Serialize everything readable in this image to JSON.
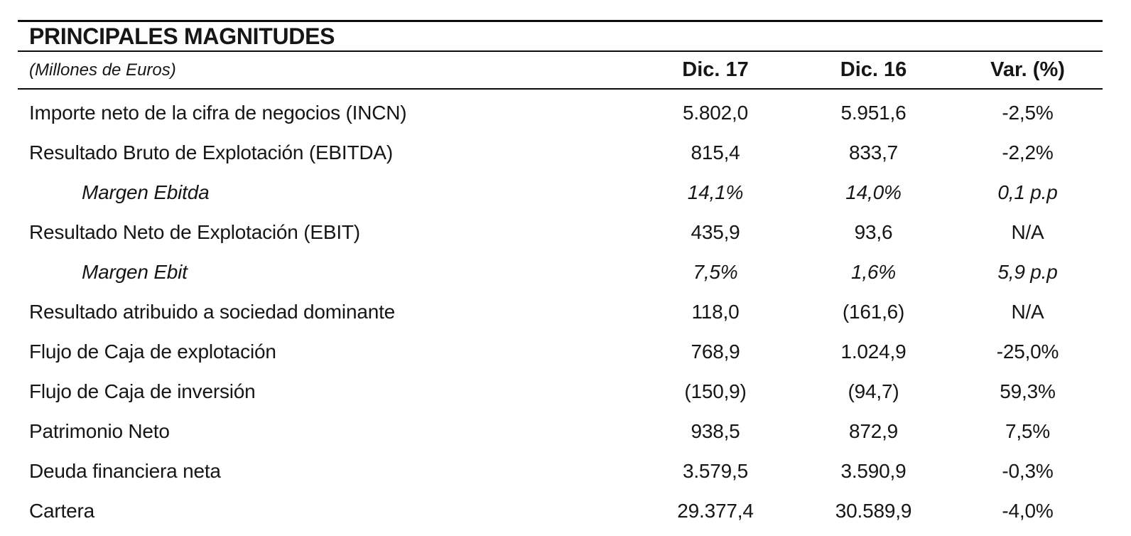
{
  "colors": {
    "text": "#161616",
    "rule": "#0d0d0d",
    "background": "#ffffff"
  },
  "table": {
    "title": "PRINCIPALES MAGNITUDES",
    "unit_note": "(Millones de Euros)",
    "columns": [
      "Dic. 17",
      "Dic. 16",
      "Var. (%)"
    ],
    "rows": [
      {
        "label": "Importe neto de la cifra de negocios (INCN)",
        "dic17": "5.802,0",
        "dic16": "5.951,6",
        "var": "-2,5%",
        "style": "normal"
      },
      {
        "label": "Resultado Bruto de Explotación (EBITDA)",
        "dic17": "815,4",
        "dic16": "833,7",
        "var": "-2,2%",
        "style": "normal"
      },
      {
        "label": "Margen Ebitda",
        "dic17": "14,1%",
        "dic16": "14,0%",
        "var": "0,1 p.p",
        "style": "italic-indent"
      },
      {
        "label": "Resultado Neto de Explotación (EBIT)",
        "dic17": "435,9",
        "dic16": "93,6",
        "var": "N/A",
        "style": "normal"
      },
      {
        "label": "Margen Ebit",
        "dic17": "7,5%",
        "dic16": "1,6%",
        "var": "5,9 p.p",
        "style": "italic-indent"
      },
      {
        "label": "Resultado atribuido a sociedad dominante",
        "dic17": "118,0",
        "dic16": "(161,6)",
        "var": "N/A",
        "style": "normal"
      },
      {
        "label": "Flujo de Caja de explotación",
        "dic17": "768,9",
        "dic16": "1.024,9",
        "var": "-25,0%",
        "style": "normal"
      },
      {
        "label": "Flujo de Caja de inversión",
        "dic17": "(150,9)",
        "dic16": "(94,7)",
        "var": "59,3%",
        "style": "normal"
      },
      {
        "label": "Patrimonio Neto",
        "dic17": "938,5",
        "dic16": "872,9",
        "var": "7,5%",
        "style": "normal"
      },
      {
        "label": "Deuda financiera neta",
        "dic17": "3.579,5",
        "dic16": "3.590,9",
        "var": "-0,3%",
        "style": "normal"
      },
      {
        "label": "Cartera",
        "dic17": "29.377,4",
        "dic16": "30.589,9",
        "var": "-4,0%",
        "style": "normal"
      }
    ]
  }
}
